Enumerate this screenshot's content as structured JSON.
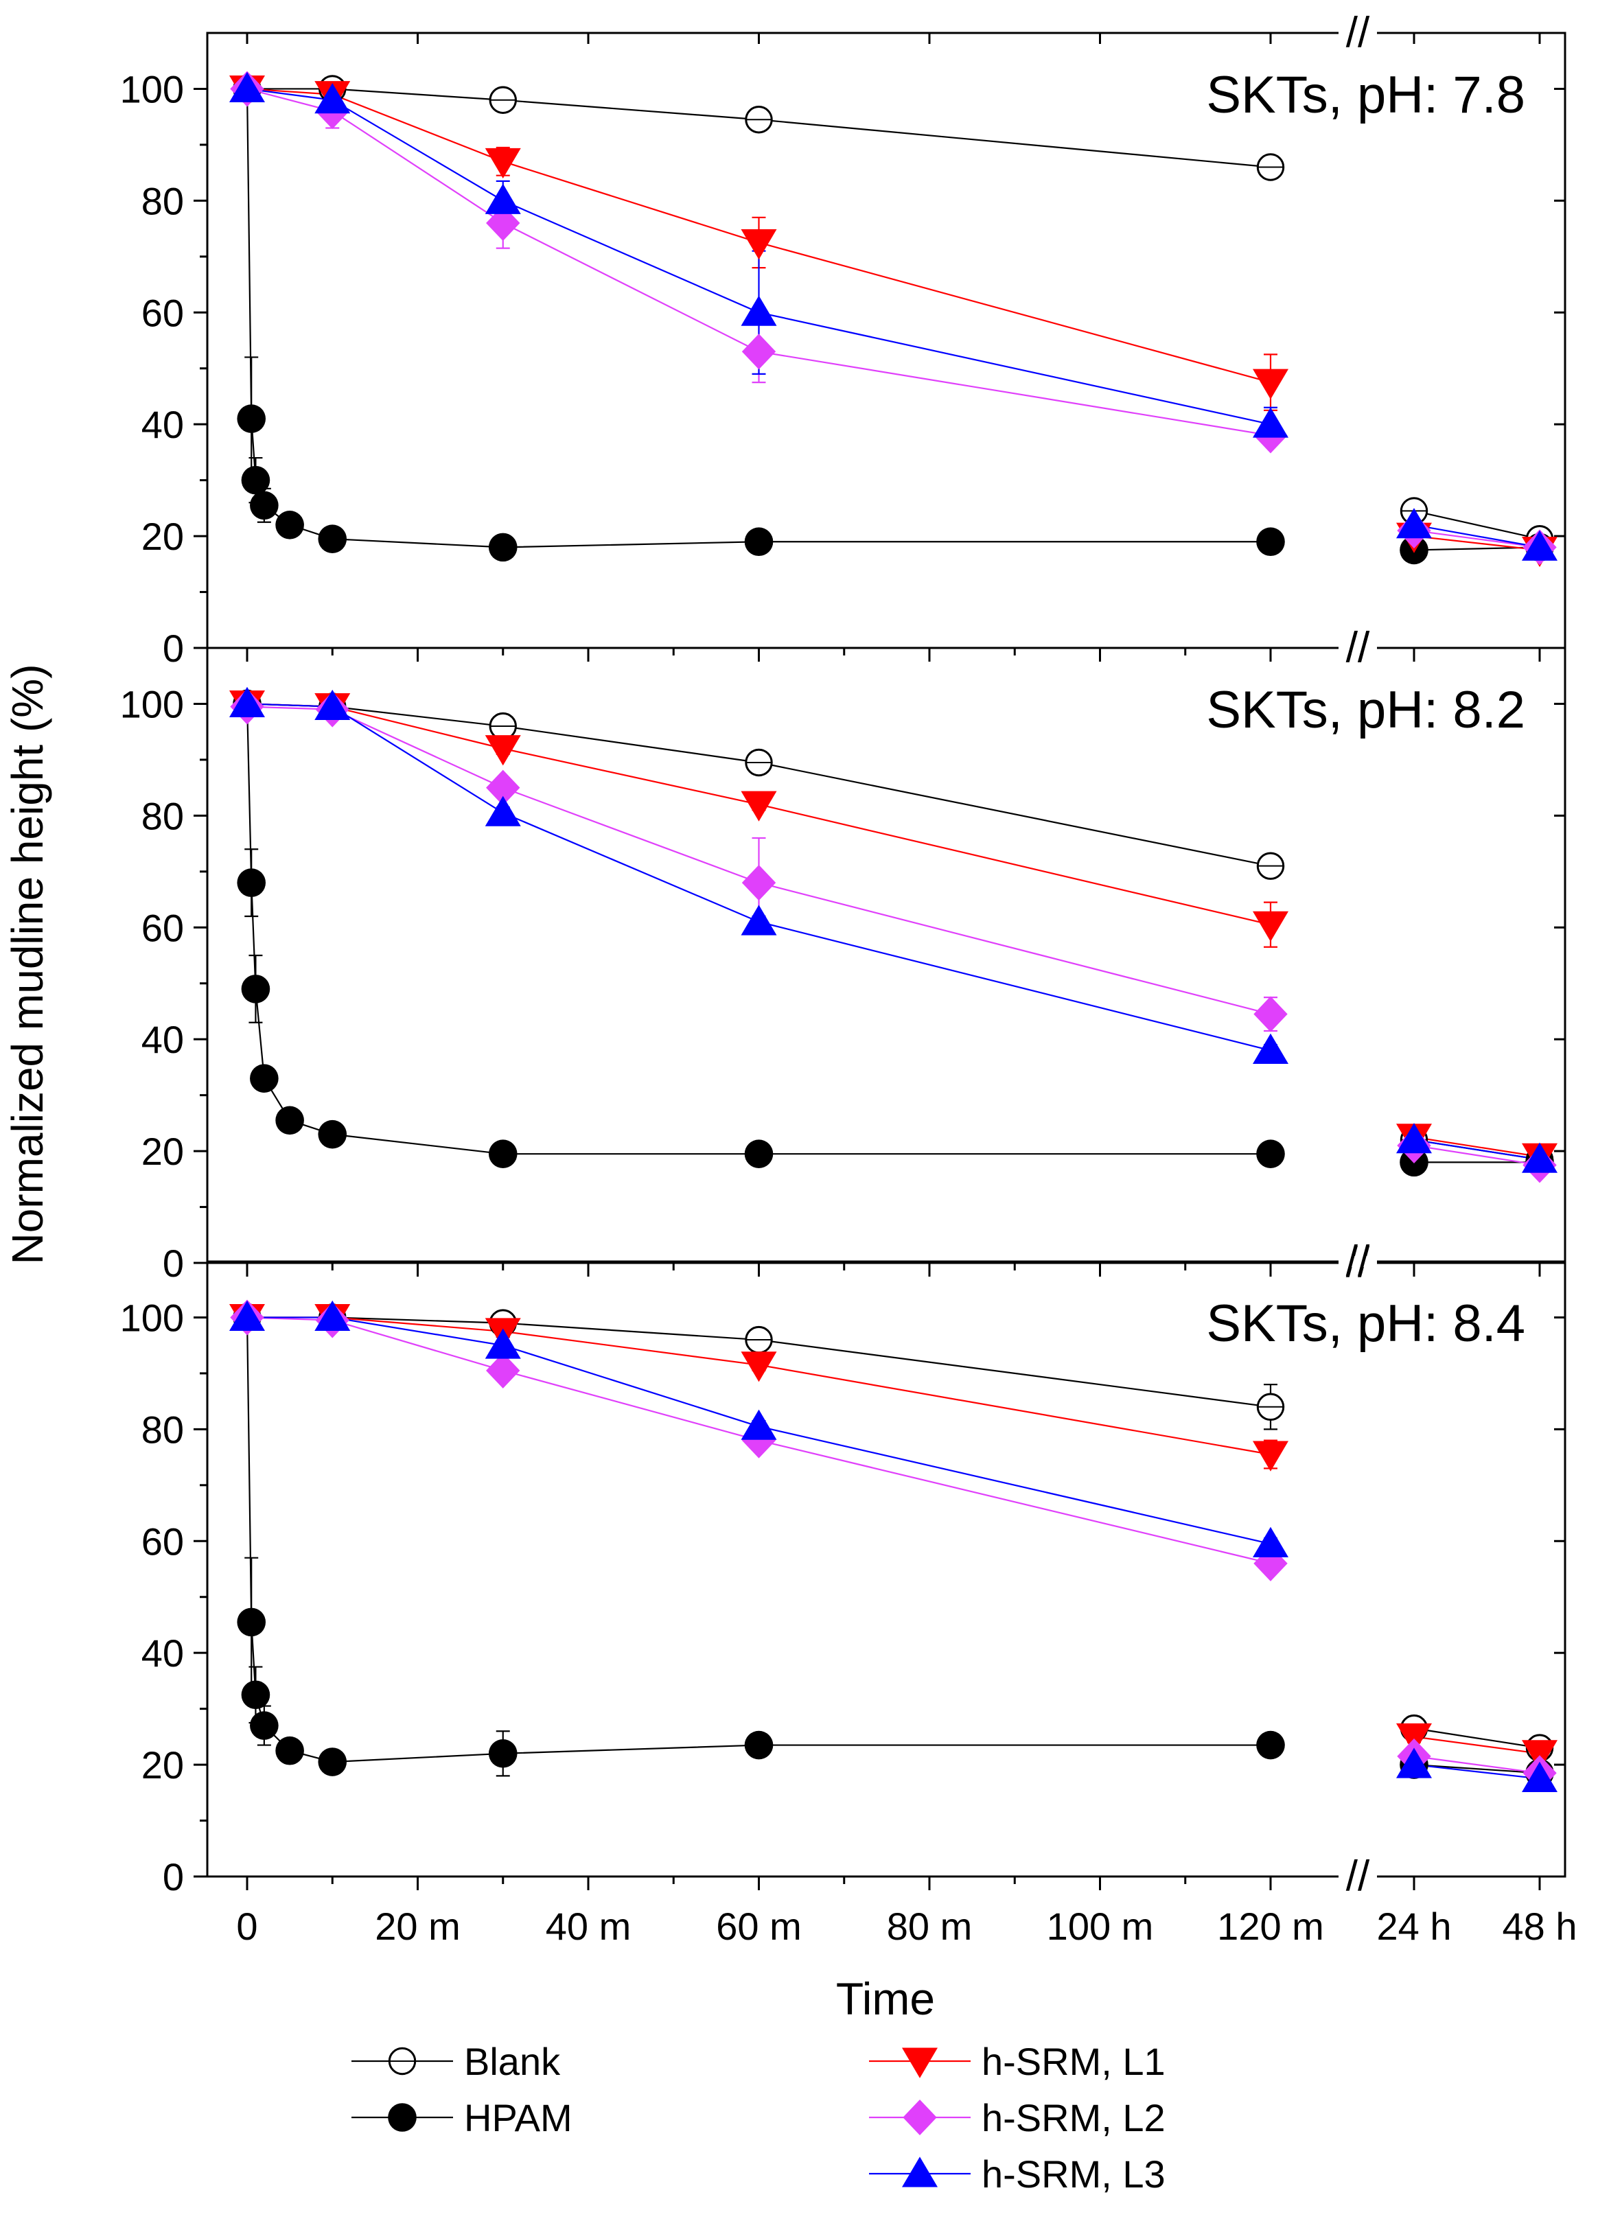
{
  "chart_data": {
    "type": "line",
    "ylabel": "Normalized mudline height (%)",
    "xlabel": "Time",
    "ylim": [
      0,
      110
    ],
    "y_ticks": [
      0,
      20,
      40,
      60,
      80,
      100
    ],
    "x_ticks": [
      {
        "label": "0",
        "x": 0
      },
      {
        "label": "20 m",
        "x": 20
      },
      {
        "label": "40 m",
        "x": 40
      },
      {
        "label": "60 m",
        "x": 60
      },
      {
        "label": "80 m",
        "x": 80
      },
      {
        "label": "100 m",
        "x": 100
      },
      {
        "label": "120 m",
        "x": 120
      },
      {
        "label": "24 h",
        "x": "24h"
      },
      {
        "label": "48 h",
        "x": "48h"
      }
    ],
    "axis_break": "//",
    "legend": [
      {
        "key": "blank",
        "label": "Blank",
        "color": "#000000",
        "marker": "open-circle"
      },
      {
        "key": "hpam",
        "label": "HPAM",
        "color": "#000000",
        "marker": "filled-circle"
      },
      {
        "key": "l1",
        "label": "h-SRM, L1",
        "color": "#ff0000",
        "marker": "down-triangle"
      },
      {
        "key": "l2",
        "label": "h-SRM, L2",
        "color": "#e040fb",
        "marker": "diamond"
      },
      {
        "key": "l3",
        "label": "h-SRM, L3",
        "color": "#0000ff",
        "marker": "up-triangle"
      }
    ],
    "panels": [
      {
        "title": "SKTs, pH: 7.8",
        "series": [
          {
            "key": "blank",
            "points": [
              [
                0,
                100
              ],
              [
                10,
                100
              ],
              [
                30,
                98
              ],
              [
                60,
                94.5
              ],
              [
                120,
                86
              ],
              [
                "24h",
                24.5
              ],
              [
                "48h",
                19.5
              ]
            ],
            "errors": [
              0,
              0,
              1,
              1,
              1,
              1,
              1
            ]
          },
          {
            "key": "hpam",
            "points": [
              [
                0,
                100
              ],
              [
                0.5,
                41
              ],
              [
                1,
                30
              ],
              [
                2,
                25.5
              ],
              [
                5,
                22
              ],
              [
                10,
                19.5
              ],
              [
                30,
                18
              ],
              [
                60,
                19
              ],
              [
                120,
                19
              ],
              [
                "24h",
                17.5
              ],
              [
                "48h",
                18
              ]
            ],
            "errors": [
              0,
              11,
              4,
              3,
              1.5,
              1,
              0.5,
              0.5,
              0.5,
              0.5,
              0.5
            ]
          },
          {
            "key": "l1",
            "points": [
              [
                0,
                100
              ],
              [
                10,
                99
              ],
              [
                30,
                87
              ],
              [
                60,
                72.5
              ],
              [
                120,
                47.5
              ],
              [
                "24h",
                20
              ],
              [
                "48h",
                17.5
              ]
            ],
            "errors": [
              0,
              1,
              2.5,
              4.5,
              5,
              1,
              1
            ]
          },
          {
            "key": "l2",
            "points": [
              [
                0,
                100
              ],
              [
                10,
                96
              ],
              [
                30,
                76
              ],
              [
                60,
                53
              ],
              [
                120,
                38
              ],
              [
                "24h",
                21
              ],
              [
                "48h",
                18
              ]
            ],
            "errors": [
              0,
              3,
              4.5,
              5.5,
              1.5,
              1,
              1
            ]
          },
          {
            "key": "l3",
            "points": [
              [
                0,
                100
              ],
              [
                10,
                98
              ],
              [
                30,
                80
              ],
              [
                60,
                60
              ],
              [
                120,
                40
              ],
              [
                "24h",
                22
              ],
              [
                "48h",
                18
              ]
            ],
            "errors": [
              0,
              1,
              3.5,
              11,
              3,
              1,
              1
            ]
          }
        ]
      },
      {
        "title": "SKTs, pH: 8.2",
        "series": [
          {
            "key": "blank",
            "points": [
              [
                0,
                100
              ],
              [
                10,
                99.5
              ],
              [
                30,
                96
              ],
              [
                60,
                89.5
              ],
              [
                120,
                71
              ],
              [
                "24h",
                22
              ],
              [
                "48h",
                18.5
              ]
            ],
            "errors": [
              0,
              0.5,
              1,
              1,
              1,
              1,
              1
            ]
          },
          {
            "key": "hpam",
            "points": [
              [
                0,
                100
              ],
              [
                0.5,
                68
              ],
              [
                1,
                49
              ],
              [
                2,
                33
              ],
              [
                5,
                25.5
              ],
              [
                10,
                23
              ],
              [
                30,
                19.5
              ],
              [
                60,
                19.5
              ],
              [
                120,
                19.5
              ],
              [
                "24h",
                18
              ],
              [
                "48h",
                18
              ]
            ],
            "errors": [
              0,
              6,
              6,
              1.5,
              1,
              1,
              0.5,
              0.5,
              0.5,
              0.5,
              0.5
            ]
          },
          {
            "key": "l1",
            "points": [
              [
                0,
                100
              ],
              [
                10,
                99.5
              ],
              [
                30,
                92
              ],
              [
                60,
                82
              ],
              [
                120,
                60.5
              ],
              [
                "24h",
                22.5
              ],
              [
                "48h",
                19
              ]
            ],
            "errors": [
              0,
              0.5,
              1,
              1,
              4,
              1,
              1
            ]
          },
          {
            "key": "l2",
            "points": [
              [
                0,
                99.5
              ],
              [
                10,
                99
              ],
              [
                30,
                85
              ],
              [
                60,
                68
              ],
              [
                120,
                44.5
              ],
              [
                "24h",
                21
              ],
              [
                "48h",
                17.5
              ]
            ],
            "errors": [
              0,
              1,
              1.5,
              8,
              3,
              1,
              1
            ]
          },
          {
            "key": "l3",
            "points": [
              [
                0,
                100
              ],
              [
                10,
                99.5
              ],
              [
                30,
                80.5
              ],
              [
                60,
                61
              ],
              [
                120,
                38
              ],
              [
                "24h",
                22
              ],
              [
                "48h",
                18.5
              ]
            ],
            "errors": [
              0,
              0.5,
              1,
              1,
              1,
              1,
              1
            ]
          }
        ]
      },
      {
        "title": "SKTs, pH: 8.4",
        "series": [
          {
            "key": "blank",
            "points": [
              [
                0,
                100
              ],
              [
                10,
                100
              ],
              [
                30,
                99
              ],
              [
                60,
                96
              ],
              [
                120,
                84
              ],
              [
                "24h",
                26.5
              ],
              [
                "48h",
                23
              ]
            ],
            "errors": [
              0,
              0,
              1,
              1,
              4,
              1,
              1
            ]
          },
          {
            "key": "hpam",
            "points": [
              [
                0,
                100
              ],
              [
                0.5,
                45.5
              ],
              [
                1,
                32.5
              ],
              [
                2,
                27
              ],
              [
                5,
                22.5
              ],
              [
                10,
                20.5
              ],
              [
                30,
                22
              ],
              [
                60,
                23.5
              ],
              [
                120,
                23.5
              ],
              [
                "24h",
                20
              ],
              [
                "48h",
                18.5
              ]
            ],
            "errors": [
              0,
              11.5,
              5,
              3.5,
              1,
              0.5,
              4,
              0.5,
              0.5,
              0.5,
              0.5
            ]
          },
          {
            "key": "l1",
            "points": [
              [
                0,
                100
              ],
              [
                10,
                100
              ],
              [
                30,
                97.5
              ],
              [
                60,
                91.5
              ],
              [
                120,
                75.5
              ],
              [
                "24h",
                25
              ],
              [
                "48h",
                22
              ]
            ],
            "errors": [
              0,
              0,
              1,
              1,
              2.5,
              1,
              1
            ]
          },
          {
            "key": "l2",
            "points": [
              [
                0,
                100
              ],
              [
                10,
                99.5
              ],
              [
                30,
                90.5
              ],
              [
                60,
                78
              ],
              [
                120,
                56
              ],
              [
                "24h",
                21.5
              ],
              [
                "48h",
                18.5
              ]
            ],
            "errors": [
              0,
              0.5,
              1,
              1,
              1,
              1,
              1
            ]
          },
          {
            "key": "l3",
            "points": [
              [
                0,
                100
              ],
              [
                10,
                100
              ],
              [
                30,
                95
              ],
              [
                60,
                80.5
              ],
              [
                120,
                59.5
              ],
              [
                "24h",
                20
              ],
              [
                "48h",
                17.5
              ]
            ],
            "errors": [
              0,
              0,
              1.5,
              1,
              1,
              1,
              1
            ]
          }
        ]
      }
    ]
  }
}
